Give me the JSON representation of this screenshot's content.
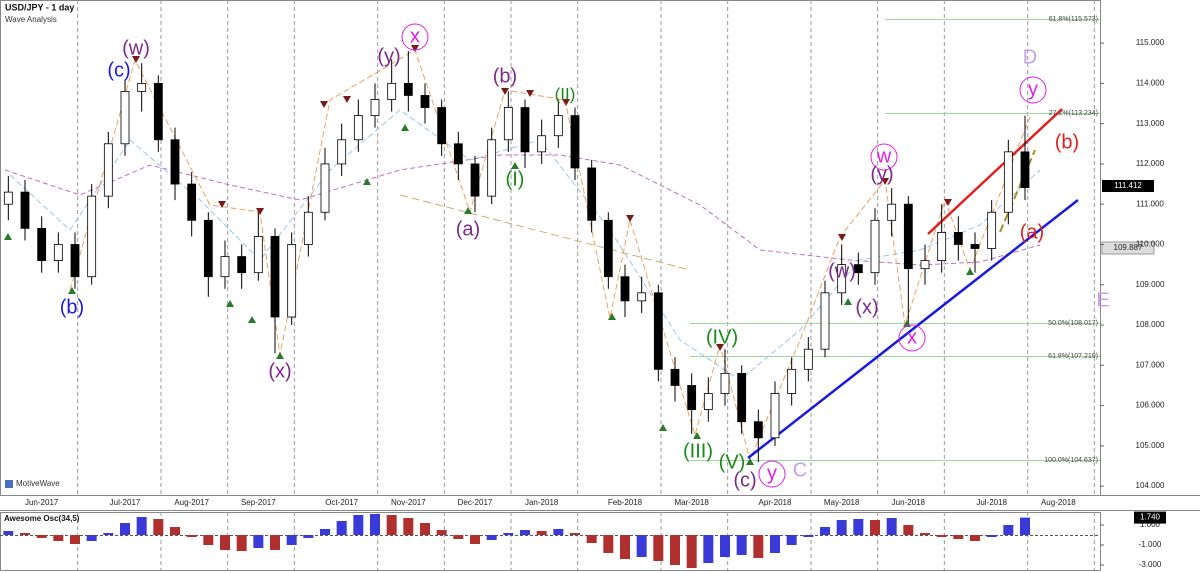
{
  "header": {
    "title": "USD/JPY - 1 day",
    "subtitle": "Wave Analysis",
    "watermark": "MotiveWave"
  },
  "chart_data": [
    {
      "type": "candlestick",
      "categories": [
        null,
        null,
        "Jun-2017",
        null,
        null,
        null,
        null,
        "Jul-2017",
        null,
        null,
        null,
        "Aug-2017",
        null,
        null,
        null,
        "Sep-2017",
        null,
        null,
        null,
        null,
        "Oct-2017",
        null,
        null,
        null,
        "Nov-2017",
        null,
        null,
        null,
        "Dec-2017",
        null,
        null,
        null,
        "Jan-2018",
        null,
        null,
        null,
        null,
        "Feb-2018",
        null,
        null,
        null,
        "Mar-2018",
        null,
        null,
        null,
        null,
        "Apr-2018",
        null,
        null,
        null,
        "May-2018",
        null,
        null,
        null,
        "Jun-2018",
        null,
        null,
        null,
        null,
        "Jul-2018",
        null,
        null,
        null,
        "Aug-2018",
        null,
        null
      ],
      "open": [
        111.0,
        111.3,
        110.4,
        109.6,
        110.0,
        109.2,
        111.2,
        112.5,
        113.8,
        114.0,
        112.6,
        111.5,
        110.6,
        109.2,
        109.7,
        109.3,
        110.2,
        108.2,
        110.0,
        110.8,
        112.0,
        112.6,
        113.2,
        113.6,
        114.0,
        113.7,
        113.4,
        112.5,
        112.0,
        111.2,
        112.6,
        113.4,
        112.3,
        112.7,
        113.2,
        111.9,
        110.6,
        109.2,
        108.6,
        108.8,
        106.9,
        106.5,
        105.9,
        106.3,
        106.8,
        105.6,
        105.2,
        106.3,
        106.9,
        107.4,
        108.8,
        109.5,
        109.3,
        110.6,
        111.0,
        109.4,
        109.6,
        110.3,
        110.0,
        109.9,
        110.8,
        112.3,
        null,
        null,
        null,
        null
      ],
      "high": [
        111.7,
        111.6,
        110.7,
        110.3,
        110.3,
        111.5,
        112.8,
        114.1,
        114.5,
        114.2,
        112.9,
        111.8,
        110.8,
        110.1,
        110.0,
        110.9,
        110.4,
        110.3,
        111.2,
        112.4,
        113.0,
        113.6,
        114.0,
        114.6,
        114.8,
        114.0,
        113.6,
        112.8,
        112.2,
        112.9,
        113.8,
        113.6,
        113.1,
        113.6,
        113.4,
        112.1,
        110.8,
        109.5,
        109.2,
        109.0,
        107.2,
        106.8,
        106.7,
        107.4,
        107.0,
        105.9,
        106.6,
        107.2,
        107.7,
        109.1,
        110.0,
        109.8,
        110.9,
        111.4,
        111.2,
        110.0,
        111.0,
        110.7,
        110.3,
        111.1,
        112.6,
        113.2,
        null,
        null,
        null,
        null
      ],
      "low": [
        110.6,
        110.1,
        109.3,
        109.3,
        108.9,
        109.0,
        110.9,
        112.2,
        113.3,
        112.3,
        111.1,
        110.2,
        108.7,
        108.9,
        108.9,
        109.1,
        107.3,
        108.0,
        109.7,
        110.6,
        111.7,
        112.3,
        112.9,
        113.3,
        113.3,
        113.0,
        112.2,
        111.6,
        110.8,
        111.0,
        112.3,
        111.9,
        112.0,
        112.4,
        111.6,
        110.3,
        108.9,
        108.2,
        108.3,
        106.6,
        106.1,
        105.3,
        105.6,
        106.0,
        105.3,
        104.6,
        105.0,
        106.0,
        106.6,
        107.2,
        108.5,
        109.0,
        109.0,
        110.2,
        108.0,
        109.0,
        109.3,
        109.6,
        109.3,
        109.6,
        110.5,
        111.1,
        null,
        null,
        null,
        null
      ],
      "close": [
        111.3,
        110.4,
        109.6,
        110.0,
        109.2,
        111.2,
        112.5,
        113.8,
        114.0,
        112.6,
        111.5,
        110.6,
        109.2,
        109.7,
        109.3,
        110.2,
        108.2,
        110.0,
        110.8,
        112.0,
        112.6,
        113.2,
        113.6,
        114.0,
        113.7,
        113.4,
        112.5,
        112.0,
        111.2,
        112.6,
        113.4,
        112.3,
        112.7,
        113.2,
        111.9,
        110.6,
        109.2,
        108.6,
        108.8,
        106.9,
        106.5,
        105.9,
        106.3,
        106.8,
        105.6,
        105.2,
        106.3,
        106.9,
        107.4,
        108.8,
        109.5,
        109.3,
        110.6,
        111.0,
        109.4,
        109.6,
        110.3,
        110.0,
        109.9,
        110.8,
        112.3,
        111.412,
        null,
        null,
        null,
        null
      ],
      "last_price_label": "111.412",
      "average_label": "109.887",
      "up_color": "#ffffff",
      "down_color": "#000000",
      "ylim": [
        103.78,
        116.07
      ],
      "yticks": [
        {
          "value": 104,
          "label": "104.000"
        },
        {
          "value": 105,
          "label": "105.000"
        },
        {
          "value": 106,
          "label": "106.000"
        },
        {
          "value": 107,
          "label": "107.000"
        },
        {
          "value": 108,
          "label": "108.000"
        },
        {
          "value": 109,
          "label": "109.000"
        },
        {
          "value": 110,
          "label": "110.000"
        },
        {
          "value": 111,
          "label": "111.000"
        },
        {
          "value": 112,
          "label": "112.000"
        },
        {
          "value": 113,
          "label": "113.000"
        },
        {
          "value": 114,
          "label": "114.000"
        },
        {
          "value": 115,
          "label": "115.000"
        }
      ],
      "fib_labels": [
        "61.8%(115.573)",
        "27.2%(113.234)",
        "50.0%(108.017)",
        "61.8%(107.219)",
        "100.0%(104.637)"
      ],
      "annotations": [
        "(w)",
        "(c)",
        "(b)",
        "(x)",
        "(y)",
        "x",
        "(b)",
        "(II)",
        "(I)",
        "(a)",
        "(IV)",
        "(III)",
        "(V)",
        "(c)",
        "y",
        "C",
        "(w)",
        "(x)",
        "w",
        "(y)",
        "x",
        "D",
        "y",
        "(b)",
        "(a)",
        "E"
      ]
    },
    {
      "type": "bar",
      "title": "Awesome Osc(34,5)",
      "values": [
        0.4,
        0.2,
        -0.3,
        -0.6,
        -0.9,
        -0.6,
        0.2,
        1.2,
        1.8,
        1.6,
        0.8,
        -0.2,
        -1.0,
        -1.5,
        -1.6,
        -1.3,
        -1.5,
        -1.0,
        -0.3,
        0.6,
        1.4,
        2.0,
        2.1,
        2.0,
        1.7,
        1.2,
        0.5,
        -0.4,
        -0.9,
        -0.5,
        0.2,
        0.5,
        0.4,
        0.6,
        0.2,
        -0.8,
        -1.8,
        -2.4,
        -2.2,
        -2.6,
        -3.0,
        -3.3,
        -2.8,
        -2.2,
        -2.0,
        -2.3,
        -1.8,
        -1.0,
        -0.2,
        0.8,
        1.5,
        1.6,
        1.5,
        1.7,
        1.0,
        0.2,
        -0.2,
        -0.4,
        -0.6,
        -0.2,
        1.0,
        1.74,
        null,
        null,
        null,
        null
      ],
      "last_value_label": "1.740",
      "up_color": "#3a3ad8",
      "down_color": "#b03030",
      "ylim": [
        -3.5,
        2.3
      ],
      "yticks": [
        {
          "value": 1,
          "label": "1.000"
        },
        {
          "value": -1,
          "label": "-1.000"
        },
        {
          "value": -3,
          "label": "-3.000"
        }
      ]
    }
  ]
}
